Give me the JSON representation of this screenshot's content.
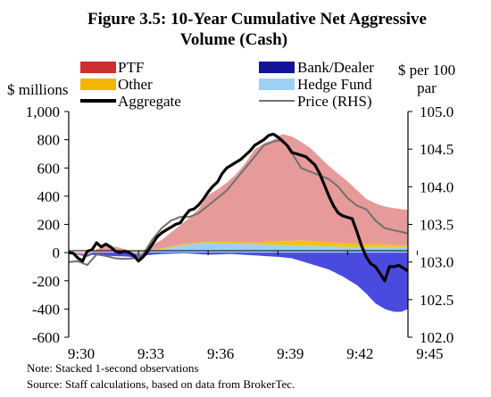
{
  "chart_data": {
    "type": "area",
    "title_line1": "Figure 3.5: 10-Year Cumulative Net Aggressive",
    "title_line2": "Volume (Cash)",
    "ylabel_left": "$ millions",
    "ylabel_right_line1": "$ per 100",
    "ylabel_right_line2": "par",
    "x_ticks": [
      "9:30",
      "9:33",
      "9:36",
      "9:39",
      "9:42",
      "9:45"
    ],
    "x_tick_minutes": [
      0,
      3,
      6,
      9,
      12,
      15
    ],
    "xlim": [
      0,
      14.6
    ],
    "ylim_left": [
      -600,
      1000
    ],
    "ylim_right": [
      102.0,
      105.0
    ],
    "y_ticks_left": [
      "1,000",
      "800",
      "600",
      "400",
      "200",
      "0",
      "-200",
      "-400",
      "-600"
    ],
    "y_tick_values_left": [
      1000,
      800,
      600,
      400,
      200,
      0,
      -200,
      -400,
      -600
    ],
    "y_ticks_right": [
      "105.0",
      "104.5",
      "104.0",
      "103.5",
      "103.0",
      "102.5",
      "102.0"
    ],
    "y_tick_values_right": [
      105.0,
      104.5,
      104.0,
      103.5,
      103.0,
      102.5,
      102.0
    ],
    "legend": [
      {
        "label": "PTF",
        "kind": "patch",
        "color": "#cc2f2f"
      },
      {
        "label": "Bank/Dealer",
        "kind": "patch",
        "color": "#141496"
      },
      {
        "label": "Other",
        "kind": "patch",
        "color": "#f5b400"
      },
      {
        "label": "Hedge Fund",
        "kind": "patch",
        "color": "#9ed0f5"
      },
      {
        "label": "Aggregate",
        "kind": "line",
        "color": "#000000"
      },
      {
        "label": "Price (RHS)",
        "kind": "line",
        "color": "#707070"
      }
    ],
    "grid": false,
    "series": [
      {
        "name": "PTF",
        "color": "#e79a9a",
        "x": [
          0,
          0.4,
          0.8,
          1.2,
          1.6,
          2.0,
          2.4,
          2.8,
          3.2,
          3.6,
          4.0,
          4.4,
          4.8,
          5.2,
          5.6,
          6.0,
          6.4,
          6.8,
          7.2,
          7.6,
          8.0,
          8.4,
          8.8,
          9.2,
          9.6,
          10.0,
          10.4,
          10.8,
          11.2,
          11.6,
          12.0,
          12.4,
          12.8,
          13.2,
          13.6,
          14.0,
          14.3,
          14.6
        ],
        "values": [
          0,
          -10,
          -20,
          20,
          40,
          35,
          15,
          -10,
          -20,
          30,
          60,
          100,
          140,
          180,
          240,
          330,
          370,
          420,
          480,
          560,
          660,
          700,
          720,
          760,
          740,
          700,
          660,
          600,
          540,
          490,
          440,
          380,
          320,
          290,
          270,
          260,
          255,
          250
        ]
      },
      {
        "name": "Other",
        "color": "#f5c400",
        "x": [
          0,
          2,
          4,
          6,
          8,
          9,
          10,
          11,
          12,
          13,
          14,
          14.6
        ],
        "values": [
          0,
          2,
          5,
          8,
          12,
          25,
          35,
          30,
          25,
          20,
          15,
          12
        ]
      },
      {
        "name": "Hedge Fund",
        "color": "#9ed0f5",
        "x": [
          0,
          2,
          3,
          4,
          5,
          6,
          7,
          8,
          9,
          10,
          11,
          12,
          13,
          14,
          14.6
        ],
        "values": [
          0,
          5,
          10,
          25,
          55,
          70,
          65,
          60,
          55,
          50,
          45,
          40,
          40,
          40,
          40
        ]
      },
      {
        "name": "Bank/Dealer",
        "color": "#4a4ae0",
        "x": [
          0,
          0.8,
          1.2,
          2.0,
          2.8,
          3.2,
          4.0,
          5.0,
          6.0,
          7.0,
          8.0,
          9.0,
          9.6,
          10.0,
          10.6,
          11.2,
          11.8,
          12.4,
          12.8,
          13.2,
          13.6,
          14.0,
          14.3,
          14.6
        ],
        "values": [
          0,
          -10,
          -20,
          -25,
          -30,
          -20,
          -10,
          -5,
          -15,
          -10,
          -20,
          -30,
          -40,
          -60,
          -90,
          -120,
          -170,
          -230,
          -290,
          -360,
          -400,
          -420,
          -420,
          -400
        ]
      },
      {
        "name": "Aggregate",
        "color": "#000000",
        "x": [
          0,
          0.2,
          0.4,
          0.6,
          0.8,
          1.0,
          1.2,
          1.4,
          1.6,
          1.8,
          2.0,
          2.2,
          2.4,
          2.6,
          2.8,
          3.0,
          3.2,
          3.4,
          3.6,
          3.8,
          4.0,
          4.2,
          4.4,
          4.6,
          4.8,
          5.0,
          5.2,
          5.4,
          5.6,
          5.8,
          6.0,
          6.2,
          6.4,
          6.6,
          6.8,
          7.0,
          7.2,
          7.4,
          7.6,
          7.8,
          8.0,
          8.2,
          8.4,
          8.6,
          8.8,
          9.0,
          9.2,
          9.4,
          9.6,
          9.8,
          10.0,
          10.2,
          10.4,
          10.6,
          10.8,
          11.0,
          11.2,
          11.4,
          11.6,
          11.8,
          12.0,
          12.2,
          12.4,
          12.6,
          12.8,
          13.0,
          13.2,
          13.4,
          13.6,
          13.8,
          14.0,
          14.2,
          14.4,
          14.6
        ],
        "values": [
          0,
          -5,
          -40,
          -60,
          10,
          20,
          70,
          40,
          60,
          40,
          10,
          0,
          10,
          0,
          -20,
          -60,
          -30,
          10,
          60,
          110,
          140,
          160,
          180,
          200,
          210,
          260,
          300,
          310,
          340,
          380,
          430,
          470,
          500,
          560,
          600,
          620,
          640,
          660,
          690,
          720,
          760,
          780,
          800,
          830,
          840,
          820,
          790,
          760,
          710,
          700,
          690,
          680,
          650,
          620,
          560,
          480,
          400,
          330,
          280,
          260,
          250,
          240,
          150,
          50,
          -30,
          -80,
          -100,
          -150,
          -200,
          -100,
          -100,
          -90,
          -110,
          -130
        ]
      },
      {
        "name": "Price (RHS)",
        "color": "#707070",
        "x": [
          0,
          0.4,
          0.8,
          1.2,
          1.6,
          2.0,
          2.4,
          2.8,
          3.2,
          3.6,
          4.0,
          4.4,
          4.8,
          5.2,
          5.6,
          6.0,
          6.4,
          6.8,
          7.2,
          7.6,
          8.0,
          8.4,
          8.8,
          9.2,
          9.6,
          10.0,
          10.4,
          10.8,
          11.2,
          11.6,
          12.0,
          12.4,
          12.8,
          13.2,
          13.6,
          14.0,
          14.3,
          14.6
        ],
        "values": [
          103.0,
          103.01,
          102.96,
          103.1,
          103.08,
          103.05,
          103.04,
          103.05,
          103.1,
          103.3,
          103.45,
          103.55,
          103.6,
          103.6,
          103.65,
          103.75,
          103.85,
          103.95,
          104.1,
          104.25,
          104.4,
          104.55,
          104.6,
          104.62,
          104.45,
          104.25,
          104.2,
          104.15,
          104.1,
          104.0,
          103.85,
          103.75,
          103.7,
          103.55,
          103.45,
          103.42,
          103.4,
          103.38
        ]
      }
    ]
  },
  "notes": {
    "note1": "Note: Stacked 1-second observations",
    "note2": "Source: Staff calculations, based on data from BrokerTec."
  }
}
